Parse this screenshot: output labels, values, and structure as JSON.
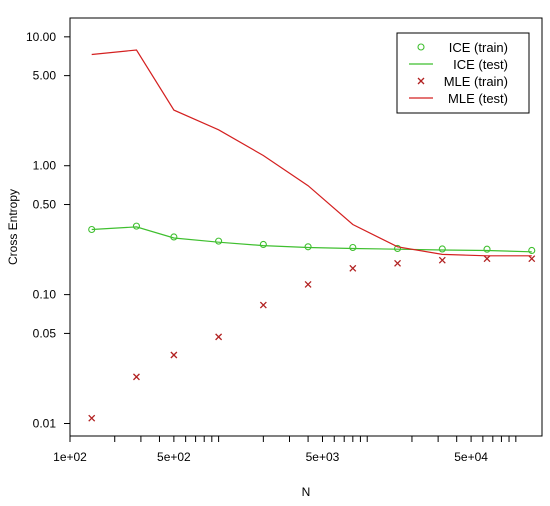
{
  "chart_data": {
    "type": "line",
    "xlabel": "N",
    "ylabel": "Cross Entropy",
    "x_scale": "log",
    "y_scale": "log",
    "xlim": [
      100,
      150000
    ],
    "ylim": [
      0.008,
      14
    ],
    "x_ticks": [
      {
        "value": 100,
        "label": "1e+02"
      },
      {
        "value": 500,
        "label": "5e+02"
      },
      {
        "value": 5000,
        "label": "5e+03"
      },
      {
        "value": 50000,
        "label": "5e+04"
      }
    ],
    "y_ticks": [
      {
        "value": 0.01,
        "label": "0.01"
      },
      {
        "value": 0.05,
        "label": "0.05"
      },
      {
        "value": 0.1,
        "label": "0.10"
      },
      {
        "value": 0.5,
        "label": "0.50"
      },
      {
        "value": 1,
        "label": "1.00"
      },
      {
        "value": 5,
        "label": "5.00"
      },
      {
        "value": 10,
        "label": "10.00"
      }
    ],
    "x": [
      140,
      280,
      500,
      1000,
      2000,
      4000,
      8000,
      16000,
      32000,
      64000,
      128000
    ],
    "series": [
      {
        "name": "ICE (train)",
        "kind": "points",
        "marker": "o",
        "color": "#3fbf2f",
        "values": [
          0.32,
          0.34,
          0.28,
          0.26,
          0.245,
          0.235,
          0.232,
          0.228,
          0.226,
          0.225,
          0.22
        ]
      },
      {
        "name": "ICE (test)",
        "kind": "line",
        "color": "#3fbf2f",
        "values": [
          0.32,
          0.335,
          0.275,
          0.255,
          0.24,
          0.232,
          0.228,
          0.225,
          0.222,
          0.22,
          0.215
        ]
      },
      {
        "name": "MLE (train)",
        "kind": "points",
        "marker": "x",
        "color": "#b22222",
        "values": [
          0.011,
          0.023,
          0.034,
          0.047,
          0.083,
          0.12,
          0.16,
          0.175,
          0.185,
          0.19,
          0.19
        ]
      },
      {
        "name": "MLE (test)",
        "kind": "line",
        "color": "#d42020",
        "values": [
          7.3,
          7.9,
          2.7,
          1.9,
          1.2,
          0.7,
          0.35,
          0.235,
          0.205,
          0.2,
          0.2
        ]
      }
    ],
    "legend": {
      "position": "top-right",
      "boxed": true
    }
  }
}
